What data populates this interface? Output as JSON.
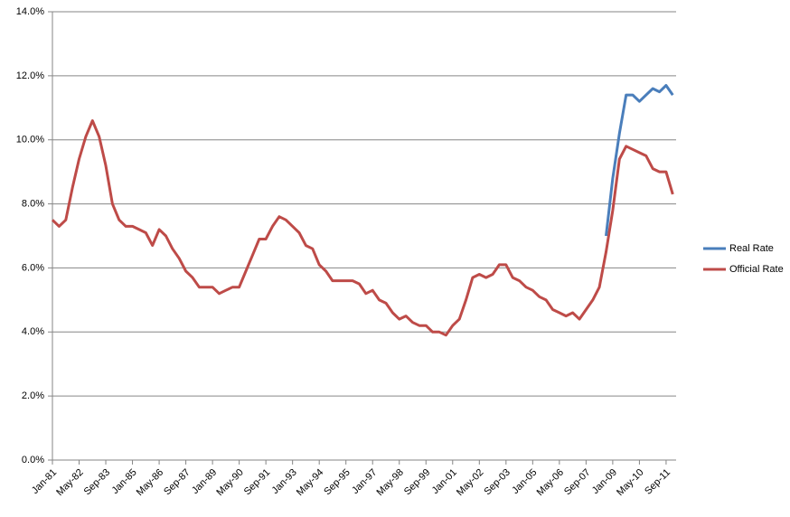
{
  "chart_data": {
    "type": "line",
    "categories": [
      "Jan-81",
      null,
      null,
      null,
      "May-82",
      null,
      null,
      null,
      "Sep-83",
      null,
      null,
      null,
      "Jan-85",
      null,
      null,
      null,
      "May-86",
      null,
      null,
      null,
      "Sep-87",
      null,
      null,
      null,
      "Jan-89",
      null,
      null,
      null,
      "May-90",
      null,
      null,
      null,
      "Sep-91",
      null,
      null,
      null,
      "Jan-93",
      null,
      null,
      null,
      "May-94",
      null,
      null,
      null,
      "Sep-95",
      null,
      null,
      null,
      "Jan-97",
      null,
      null,
      null,
      "May-98",
      null,
      null,
      null,
      "Sep-99",
      null,
      null,
      null,
      "Jan-01",
      null,
      null,
      null,
      "May-02",
      null,
      null,
      null,
      "Sep-03",
      null,
      null,
      null,
      "Jan-05",
      null,
      null,
      null,
      "May-06",
      null,
      null,
      null,
      "Sep-07",
      null,
      null,
      null,
      "Jan-09",
      null,
      null,
      null,
      "May-10",
      null,
      null,
      null,
      "Sep-11",
      null
    ],
    "series": [
      {
        "name": "Real Rate",
        "color": "#4a7ebb",
        "values": [
          null,
          null,
          null,
          null,
          null,
          null,
          null,
          null,
          null,
          null,
          null,
          null,
          null,
          null,
          null,
          null,
          null,
          null,
          null,
          null,
          null,
          null,
          null,
          null,
          null,
          null,
          null,
          null,
          null,
          null,
          null,
          null,
          null,
          null,
          null,
          null,
          null,
          null,
          null,
          null,
          null,
          null,
          null,
          null,
          null,
          null,
          null,
          null,
          null,
          null,
          null,
          null,
          null,
          null,
          null,
          null,
          null,
          null,
          null,
          null,
          null,
          null,
          null,
          null,
          null,
          null,
          null,
          null,
          null,
          null,
          null,
          null,
          null,
          null,
          null,
          null,
          null,
          null,
          null,
          null,
          null,
          null,
          null,
          7.0,
          8.8,
          10.2,
          11.4,
          11.4,
          11.2,
          11.4,
          11.6,
          11.5,
          11.7,
          11.4
        ]
      },
      {
        "name": "Official Rate",
        "color": "#be4b48",
        "values": [
          7.5,
          7.3,
          7.5,
          8.5,
          9.4,
          10.1,
          10.6,
          10.1,
          9.2,
          8.0,
          7.5,
          7.3,
          7.3,
          7.2,
          7.1,
          6.7,
          7.2,
          7.0,
          6.6,
          6.3,
          5.9,
          5.7,
          5.4,
          5.4,
          5.4,
          5.2,
          5.3,
          5.4,
          5.4,
          5.9,
          6.4,
          6.9,
          6.9,
          7.3,
          7.6,
          7.5,
          7.3,
          7.1,
          6.7,
          6.6,
          6.1,
          5.9,
          5.6,
          5.6,
          5.6,
          5.6,
          5.5,
          5.2,
          5.3,
          5.0,
          4.9,
          4.6,
          4.4,
          4.5,
          4.3,
          4.2,
          4.2,
          4.0,
          4.0,
          3.9,
          4.2,
          4.4,
          5.0,
          5.7,
          5.8,
          5.7,
          5.8,
          6.1,
          6.1,
          5.7,
          5.6,
          5.4,
          5.3,
          5.1,
          5.0,
          4.7,
          4.6,
          4.5,
          4.6,
          4.4,
          4.7,
          5.0,
          5.4,
          6.5,
          7.8,
          9.4,
          9.8,
          9.7,
          9.6,
          9.5,
          9.1,
          9.0,
          9.0,
          8.3
        ]
      }
    ],
    "ylim": [
      0,
      14
    ],
    "yticks": [
      {
        "value": 0,
        "label": "0.0%"
      },
      {
        "value": 2,
        "label": "2.0%"
      },
      {
        "value": 4,
        "label": "4.0%"
      },
      {
        "value": 6,
        "label": "6.0%"
      },
      {
        "value": 8,
        "label": "8.0%"
      },
      {
        "value": 10,
        "label": "10.0%"
      },
      {
        "value": 12,
        "label": "12.0%"
      },
      {
        "value": 14,
        "label": "14.0%"
      }
    ],
    "grid": true,
    "legend": "right"
  }
}
